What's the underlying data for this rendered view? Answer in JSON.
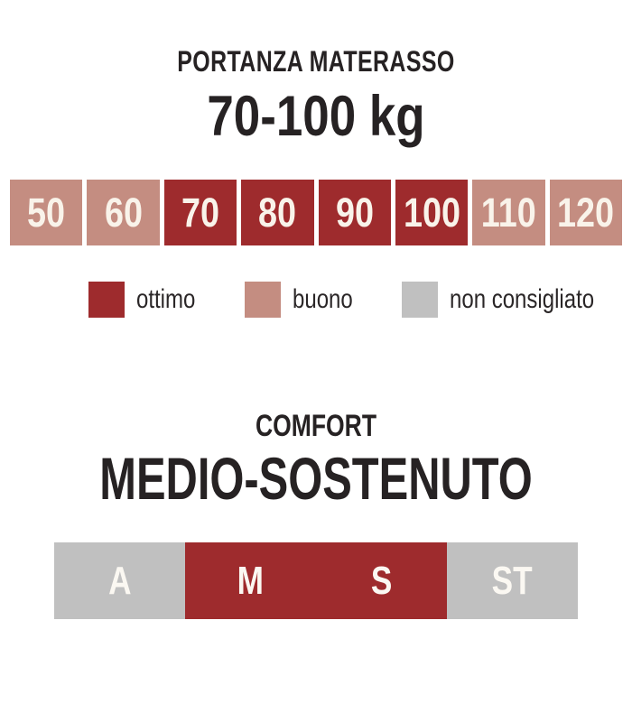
{
  "colors": {
    "ottimo": "#9e2b2d",
    "buono": "#c48d81",
    "non_consigliato": "#c0c0c0",
    "heading_text": "#262223",
    "cell_text": "#f9f3ea",
    "background": "#ffffff"
  },
  "portanza": {
    "subtitle": "PORTANZA MATERASSO",
    "title": "70-100 kg",
    "scale": [
      {
        "label": "50",
        "status": "buono"
      },
      {
        "label": "60",
        "status": "buono"
      },
      {
        "label": "70",
        "status": "ottimo"
      },
      {
        "label": "80",
        "status": "ottimo"
      },
      {
        "label": "90",
        "status": "ottimo"
      },
      {
        "label": "100",
        "status": "ottimo"
      },
      {
        "label": "110",
        "status": "buono"
      },
      {
        "label": "120",
        "status": "buono"
      }
    ],
    "legend": [
      {
        "label": "ottimo",
        "status": "ottimo"
      },
      {
        "label": "buono",
        "status": "buono"
      },
      {
        "label": "non consigliato",
        "status": "non_consigliato"
      }
    ]
  },
  "comfort": {
    "subtitle": "COMFORT",
    "title": "MEDIO-SOSTENUTO",
    "scale": [
      {
        "label": "A",
        "status": "non_consigliato"
      },
      {
        "label": "M",
        "status": "ottimo"
      },
      {
        "label": "S",
        "status": "ottimo"
      },
      {
        "label": "ST",
        "status": "non_consigliato"
      }
    ]
  },
  "chart_data": [
    {
      "type": "heatmap",
      "title": "PORTANZA MATERASSO 70-100 kg",
      "categories": [
        "50",
        "60",
        "70",
        "80",
        "90",
        "100",
        "110",
        "120"
      ],
      "values": [
        "buono",
        "buono",
        "ottimo",
        "ottimo",
        "ottimo",
        "ottimo",
        "buono",
        "buono"
      ],
      "legend": [
        "ottimo",
        "buono",
        "non consigliato"
      ],
      "legend_position": "below",
      "color_map": {
        "ottimo": "#9e2b2d",
        "buono": "#c48d81",
        "non consigliato": "#c0c0c0"
      }
    },
    {
      "type": "heatmap",
      "title": "COMFORT MEDIO-SOSTENUTO",
      "categories": [
        "A",
        "M",
        "S",
        "ST"
      ],
      "values": [
        "unselected",
        "selected",
        "selected",
        "unselected"
      ],
      "color_map": {
        "selected": "#9e2b2d",
        "unselected": "#c0c0c0"
      }
    }
  ]
}
